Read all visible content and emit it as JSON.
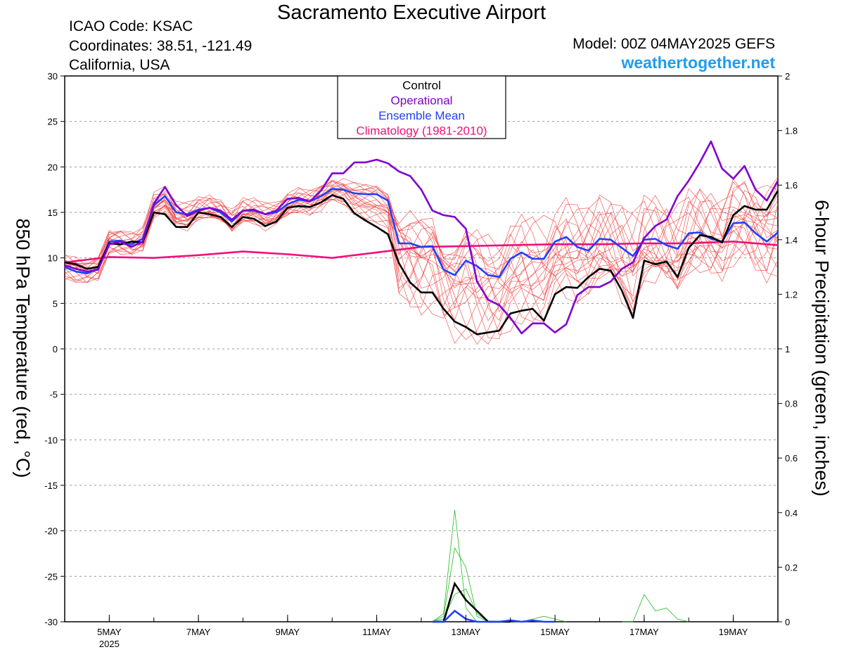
{
  "header": {
    "title": "Sacramento Executive Airport",
    "icao": "ICAO Code: KSAC",
    "coordinates": "Coordinates: 38.51, -121.49",
    "region": "California, USA",
    "model": "Model: 00Z 04MAY2025 GEFS",
    "website": "weathertogether.net"
  },
  "chart_data": {
    "type": "line",
    "left_axis": {
      "label": "850 hPa Temperature (red, °C)",
      "range": [
        -30,
        30
      ],
      "ticks": [
        "30",
        "25",
        "20",
        "15",
        "10",
        "5",
        "0",
        "-5",
        "-10",
        "-15",
        "-20",
        "-25",
        "-30"
      ]
    },
    "right_axis": {
      "label": "6-hour Precipitation (green, inches)",
      "range": [
        0,
        2
      ],
      "ticks": [
        "2",
        "1.8",
        "1.6",
        "1.4",
        "1.2",
        "1",
        "0.8",
        "0.6",
        "0.4",
        "0.2",
        "0"
      ]
    },
    "x_axis": {
      "unit": "day of May 2025",
      "range": [
        4,
        20
      ],
      "ticks": [
        {
          "x": 5,
          "label": "5MAY",
          "sub": "2025"
        },
        {
          "x": 7,
          "label": "7MAY"
        },
        {
          "x": 9,
          "label": "9MAY"
        },
        {
          "x": 11,
          "label": "11MAY"
        },
        {
          "x": 13,
          "label": "13MAY"
        },
        {
          "x": 15,
          "label": "15MAY"
        },
        {
          "x": 17,
          "label": "17MAY"
        },
        {
          "x": 19,
          "label": "19MAY"
        }
      ]
    },
    "grid": "horizontal dashed",
    "legend": {
      "position": "top-center",
      "entries": [
        {
          "label": "Control",
          "color": "#000000"
        },
        {
          "label": "Operational",
          "color": "#8000d0"
        },
        {
          "label": "Ensemble Mean",
          "color": "#2040ff"
        },
        {
          "label": "Climatology (1981-2010)",
          "color": "#f0107a"
        }
      ]
    },
    "colors": {
      "members": "#f04040",
      "precip": "#22bb22",
      "control": "#000000",
      "operational": "#8000d0",
      "mean": "#2040ff",
      "climatology": "#f0107a"
    },
    "temperature_series": [
      {
        "name": "Control",
        "x": [
          4,
          4.25,
          4.5,
          4.75,
          5,
          5.25,
          5.5,
          5.75,
          6,
          6.25,
          6.5,
          6.75,
          7,
          7.25,
          7.5,
          7.75,
          8,
          8.25,
          8.5,
          8.75,
          9,
          9.25,
          9.5,
          9.75,
          10,
          10.25,
          10.5,
          10.75,
          11,
          11.25,
          11.5,
          11.75,
          12,
          12.25,
          12.5,
          12.75,
          13,
          13.25,
          13.5,
          13.75,
          14,
          14.25,
          14.5,
          14.75,
          15,
          15.25,
          15.5,
          15.75,
          16,
          16.25,
          16.5,
          16.75,
          17,
          17.25,
          17.5,
          17.75,
          18,
          18.25,
          18.5,
          18.75,
          19,
          19.25,
          19.5,
          19.75,
          20
        ],
        "y": [
          9.5,
          9.3,
          8.8,
          9.0,
          11.6,
          11.5,
          11.8,
          11.7,
          15,
          14.8,
          13.4,
          13.4,
          15,
          14.8,
          14.5,
          13.4,
          14.5,
          14.3,
          13.5,
          14,
          15.5,
          15.7,
          15.6,
          16.1,
          16.9,
          16.5,
          14.9,
          14.1,
          13.4,
          12.6,
          9.4,
          7.3,
          6.2,
          6.2,
          4.4,
          3.0,
          2.4,
          1.6,
          1.8,
          2.0,
          3.9,
          4.2,
          4.4,
          3.1,
          6.0,
          6.8,
          6.7,
          7.9,
          8.8,
          8.6,
          6.4,
          3.4,
          9.7,
          9.3,
          9.6,
          7.9,
          11.1,
          12.5,
          12.3,
          11.7,
          14.7,
          15.7,
          15.3,
          15.3,
          17.4
        ]
      },
      {
        "name": "Operational",
        "x": [
          4,
          4.25,
          4.5,
          4.75,
          5,
          5.25,
          5.5,
          5.75,
          6,
          6.25,
          6.5,
          6.75,
          7,
          7.25,
          7.5,
          7.75,
          8,
          8.25,
          8.5,
          8.75,
          9,
          9.25,
          9.5,
          9.75,
          10,
          10.25,
          10.5,
          10.75,
          11,
          11.25,
          11.5,
          11.75,
          12,
          12.25,
          12.5,
          12.75,
          13,
          13.25,
          13.5,
          13.75,
          14,
          14.25,
          14.5,
          14.75,
          15,
          15.25,
          15.5,
          15.75,
          16,
          16.25,
          16.5,
          16.75,
          17,
          17.25,
          17.5,
          17.75,
          18,
          18.25,
          18.5,
          18.75,
          19,
          19.25,
          19.5,
          19.75,
          20
        ],
        "y": [
          9.2,
          8.8,
          8.5,
          8.7,
          11.5,
          11.8,
          11.2,
          11.8,
          16,
          17.8,
          15.8,
          14.6,
          15.2,
          15.5,
          15.2,
          14.2,
          15.2,
          15.3,
          14.8,
          15.2,
          16.5,
          16.6,
          16.2,
          17.4,
          19.3,
          19.3,
          20.5,
          20.5,
          20.8,
          20.4,
          19.5,
          19,
          17.5,
          15.2,
          14.7,
          14.5,
          13.2,
          7.4,
          5.4,
          4.8,
          3.4,
          1.7,
          2.8,
          2.8,
          1.8,
          2.7,
          5.9,
          6.8,
          6.8,
          7.4,
          8.8,
          9.5,
          12.2,
          13.5,
          14.2,
          16.8,
          18.5,
          20.5,
          22.8,
          19.8,
          18.7,
          20.1,
          17.5,
          16.3,
          18.5
        ]
      },
      {
        "name": "Ensemble Mean",
        "x": [
          4,
          4.25,
          4.5,
          4.75,
          5,
          5.25,
          5.5,
          5.75,
          6,
          6.25,
          6.5,
          6.75,
          7,
          7.25,
          7.5,
          7.75,
          8,
          8.25,
          8.5,
          8.75,
          9,
          9.25,
          9.5,
          9.75,
          10,
          10.25,
          10.5,
          10.75,
          11,
          11.25,
          11.5,
          11.75,
          12,
          12.25,
          12.5,
          12.75,
          13,
          13.25,
          13.5,
          13.75,
          14,
          14.25,
          14.5,
          14.75,
          15,
          15.25,
          15.5,
          15.75,
          16,
          16.25,
          16.5,
          16.75,
          17,
          17.25,
          17.5,
          17.75,
          18,
          18.25,
          18.5,
          18.75,
          19,
          19.25,
          19.5,
          19.75,
          20
        ],
        "y": [
          9.0,
          8.5,
          8.3,
          8.8,
          11.8,
          11.9,
          11.5,
          12.1,
          15.8,
          16.8,
          15,
          14.8,
          15.3,
          15.5,
          15,
          14,
          15.2,
          15.2,
          14.8,
          15,
          15.9,
          16.4,
          16.2,
          16.8,
          17.6,
          17.5,
          17.1,
          17,
          17,
          16.3,
          11.6,
          11.6,
          11.2,
          11.3,
          8.7,
          8.1,
          9.7,
          9.1,
          8.1,
          7.9,
          9.9,
          10.6,
          9.9,
          9.9,
          11.8,
          12.3,
          11.2,
          10.8,
          12.1,
          12.0,
          11.1,
          10.2,
          12.0,
          12.1,
          11.4,
          11.0,
          12.7,
          12.8,
          12.1,
          11.8,
          13.8,
          13.9,
          12.7,
          11.8,
          12.8
        ]
      },
      {
        "name": "Climatology (1981-2010)",
        "x": [
          4,
          5,
          6,
          7,
          8,
          9,
          10,
          11,
          12,
          13,
          14,
          15,
          16,
          17,
          18,
          19,
          20
        ],
        "y": [
          9.5,
          10.1,
          10.0,
          10.3,
          10.7,
          10.4,
          10.0,
          10.6,
          11.2,
          11.3,
          11.4,
          11.5,
          11.5,
          11.6,
          11.6,
          11.8,
          11.4
        ]
      }
    ],
    "precipitation_series": [
      {
        "name": "Control",
        "x": [
          12.25,
          12.5,
          12.75,
          13,
          13.25,
          13.5,
          13.75,
          14
        ],
        "y": [
          0,
          0,
          0.14,
          0.08,
          0.04,
          0,
          0,
          0
        ]
      },
      {
        "name": "Ensemble Mean",
        "x": [
          12.25,
          12.5,
          12.75,
          13,
          13.25,
          13.5,
          13.75,
          14,
          14.25,
          14.5,
          14.75,
          15
        ],
        "y": [
          0,
          0,
          0.04,
          0.01,
          0,
          0,
          0,
          0.005,
          0,
          0.005,
          0,
          0
        ]
      }
    ]
  }
}
